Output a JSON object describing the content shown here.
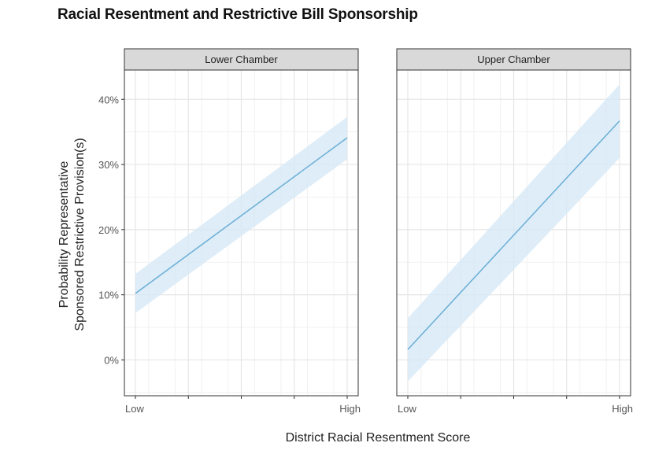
{
  "title": "Racial Resentment and Restrictive Bill Sponsorship",
  "chart_data": {
    "type": "line",
    "title": "Racial Resentment and Restrictive Bill Sponsorship",
    "xlabel": "District Racial Resentment Score",
    "ylabel_lines": [
      "Probability Representative",
      "Sponsored Restrictive Provision(s)"
    ],
    "x_tick_labels": [
      "Low",
      "High"
    ],
    "y_ticks": [
      0,
      10,
      20,
      30,
      40
    ],
    "y_tick_labels": [
      "0%",
      "10%",
      "20%",
      "30%",
      "40%"
    ],
    "ylim": [
      -5.5,
      44.5
    ],
    "xlim": [
      0,
      1
    ],
    "grid": true,
    "colors": {
      "line": "#6aaed6",
      "ribbon": "#d6e9f6",
      "strip": "#d9d9d9"
    },
    "panels": [
      {
        "label": "Lower Chamber",
        "x": [
          0,
          1
        ],
        "y": [
          10.2,
          34.1
        ],
        "lower": [
          7.2,
          30.8
        ],
        "upper": [
          13.2,
          37.3
        ]
      },
      {
        "label": "Upper Chamber",
        "x": [
          0,
          1
        ],
        "y": [
          1.6,
          36.7
        ],
        "lower": [
          -3.3,
          31.0
        ],
        "upper": [
          6.4,
          42.3
        ]
      }
    ]
  }
}
